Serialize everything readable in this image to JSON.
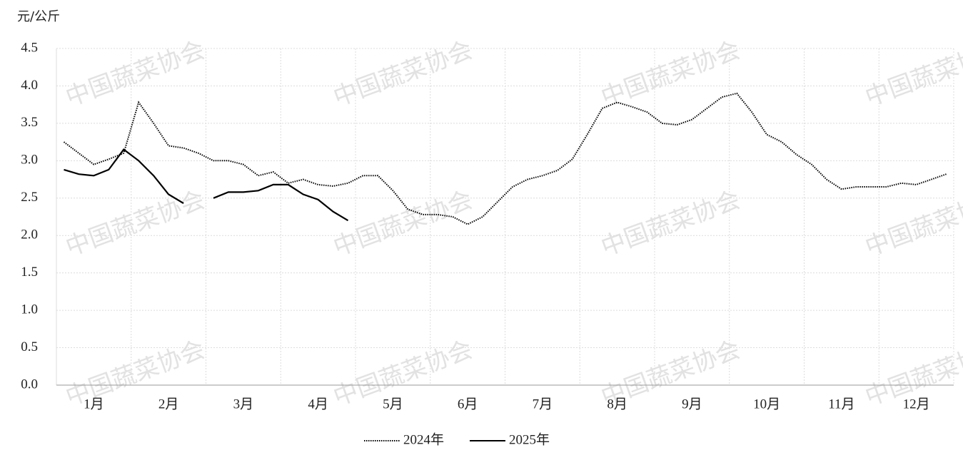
{
  "chart_data": {
    "type": "line",
    "y_label": "元/公斤",
    "watermark": "中国蔬菜协会",
    "categories": [
      null,
      null,
      "1月",
      null,
      null,
      null,
      null,
      "2月",
      null,
      null,
      null,
      null,
      "3月",
      null,
      null,
      null,
      null,
      "4月",
      null,
      null,
      null,
      null,
      "5月",
      null,
      null,
      null,
      null,
      "6月",
      null,
      null,
      null,
      null,
      "7月",
      null,
      null,
      null,
      null,
      "8月",
      null,
      null,
      null,
      null,
      "9月",
      null,
      null,
      null,
      null,
      "10月",
      null,
      null,
      null,
      null,
      "11月",
      null,
      null,
      null,
      null,
      "12月",
      null,
      null
    ],
    "series": [
      {
        "name": "2024年",
        "color": "#000000",
        "dash": "dotted",
        "values": [
          3.25,
          3.1,
          2.95,
          3.02,
          3.1,
          3.78,
          3.5,
          3.2,
          3.17,
          3.1,
          3.0,
          3.0,
          2.95,
          2.8,
          2.85,
          2.7,
          2.75,
          2.68,
          2.66,
          2.7,
          2.8,
          2.8,
          2.6,
          2.35,
          2.28,
          2.28,
          2.25,
          2.15,
          2.25,
          2.45,
          2.65,
          2.75,
          2.8,
          2.87,
          3.02,
          3.35,
          3.7,
          3.78,
          3.72,
          3.65,
          3.5,
          3.48,
          3.55,
          3.7,
          3.85,
          3.9,
          3.65,
          3.35,
          3.25,
          3.08,
          2.95,
          2.75,
          2.62,
          2.65,
          2.65,
          2.65,
          2.7,
          2.68,
          2.75,
          2.82
        ]
      },
      {
        "name": "2025年",
        "color": "#000000",
        "dash": "solid",
        "values": [
          2.88,
          2.82,
          2.8,
          2.88,
          3.15,
          3.0,
          2.8,
          2.55,
          2.43,
          null,
          2.5,
          2.58,
          2.58,
          2.6,
          2.68,
          2.68,
          2.55,
          2.48,
          2.32,
          2.2,
          null,
          null,
          null,
          null,
          null,
          null,
          null,
          null,
          null,
          null,
          null,
          null,
          null,
          null,
          null,
          null,
          null,
          null,
          null,
          null,
          null,
          null,
          null,
          null,
          null,
          null,
          null,
          null,
          null,
          null,
          null,
          null,
          null,
          null,
          null,
          null,
          null,
          null,
          null,
          null
        ]
      }
    ],
    "ylim": [
      0,
      4.5
    ],
    "yticks": [
      {
        "value": 0,
        "label": "0.0"
      },
      {
        "value": 0.5,
        "label": "0.5"
      },
      {
        "value": 1,
        "label": "1.0"
      },
      {
        "value": 1.5,
        "label": "1.5"
      },
      {
        "value": 2,
        "label": "2.0"
      },
      {
        "value": 2.5,
        "label": "2.5"
      },
      {
        "value": 3,
        "label": "3.0"
      },
      {
        "value": 3.5,
        "label": "3.5"
      },
      {
        "value": 4,
        "label": "4.0"
      },
      {
        "value": 4.5,
        "label": "4.5"
      }
    ],
    "grid": true,
    "legend": "bottom"
  }
}
